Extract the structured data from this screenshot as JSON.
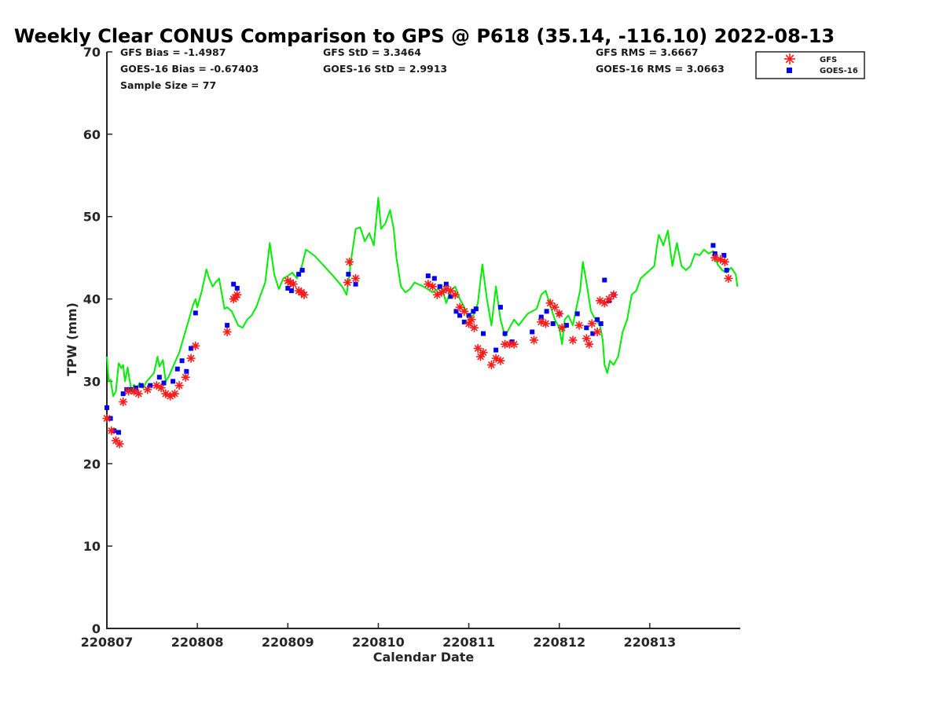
{
  "chart_data": {
    "type": "scatter",
    "title": "Weekly Clear CONUS Comparison to GPS @ P618 (35.14, -116.10) 2022-08-13",
    "xlabel": "Calendar Date",
    "ylabel": "TPW (mm)",
    "x_unit": "days",
    "xlim": [
      220807,
      220814
    ],
    "ylim": [
      0,
      70
    ],
    "yticks": [
      0,
      10,
      20,
      30,
      40,
      50,
      60,
      70
    ],
    "xticks": [
      220807,
      220808,
      220809,
      220810,
      220811,
      220812,
      220813
    ],
    "xtick_labels": [
      "220807",
      "220808",
      "220809",
      "220810",
      "220811",
      "220812",
      "220813"
    ],
    "stats": {
      "gfs_bias": "GFS Bias = -1.4987",
      "goes_bias": "GOES-16 Bias = -0.67403",
      "sample_size": "Sample Size = 77",
      "gfs_std": "GFS StD = 3.3464",
      "goes_std": "GOES-16 StD = 2.9913",
      "gfs_rms": "GFS RMS = 3.6667",
      "goes_rms": "GOES-16 RMS = 3.0663"
    },
    "legend": {
      "placement": "top-right outside",
      "entries": [
        "GFS",
        "GOES-16"
      ]
    },
    "colors": {
      "gfs": "#ff1a1a",
      "goes": "#0000ee",
      "gps": "#00ee00",
      "axis": "#262626"
    },
    "gps_line": {
      "x": [
        220807.0,
        220807.02,
        220807.04,
        220807.07,
        220807.1,
        220807.13,
        220807.16,
        220807.18,
        220807.2,
        220807.23,
        220807.25,
        220807.28,
        220807.3,
        220807.33,
        220807.36,
        220807.4,
        220807.44,
        220807.48,
        220807.52,
        220807.56,
        220807.58,
        220807.62,
        220807.65,
        220807.68,
        220807.72,
        220807.76,
        220807.8,
        220807.84,
        220807.88,
        220807.92,
        220807.95,
        220807.98,
        220808.0,
        220808.05,
        220808.1,
        220808.13,
        220808.17,
        220808.2,
        220808.24,
        220808.28,
        220808.3,
        220808.33,
        220808.38,
        220808.45,
        220808.5,
        220808.55,
        220808.6,
        220808.65,
        220808.7,
        220808.75,
        220808.8,
        220808.85,
        220808.9,
        220808.95,
        220809.0,
        220809.05,
        220809.1,
        220809.15,
        220809.2,
        220809.3,
        220809.4,
        220809.5,
        220809.6,
        220809.65,
        220809.7,
        220809.75,
        220809.8,
        220809.85,
        220809.9,
        220809.95,
        220810.0,
        220810.03,
        220810.08,
        220810.13,
        220810.17,
        220810.2,
        220810.25,
        220810.3,
        220810.35,
        220810.4,
        220810.5,
        220810.6,
        220810.7,
        220810.75,
        220810.8,
        220810.85,
        220810.9,
        220810.95,
        220811.0,
        220811.05,
        220811.1,
        220811.15,
        220811.2,
        220811.25,
        220811.3,
        220811.35,
        220811.4,
        220811.45,
        220811.5,
        220811.55,
        220811.6,
        220811.65,
        220811.7,
        220811.75,
        220811.8,
        220811.85,
        220811.9,
        220811.95,
        220812.0,
        220812.03,
        220812.06,
        220812.1,
        220812.15,
        220812.2,
        220812.23,
        220812.26,
        220812.3,
        220812.35,
        220812.4,
        220812.45,
        220812.48,
        220812.5,
        220812.53,
        220812.56,
        220812.6,
        220812.65,
        220812.7,
        220812.75,
        220812.8,
        220812.85,
        220812.9,
        220812.95,
        220813.0,
        220813.05,
        220813.08,
        220813.1,
        220813.15,
        220813.2,
        220813.25,
        220813.3,
        220813.35,
        220813.4,
        220813.45,
        220813.5,
        220813.55,
        220813.6,
        220813.65,
        220813.7,
        220813.75,
        220813.8,
        220813.85,
        220813.9,
        220813.95,
        220813.97
      ],
      "y": [
        33.0,
        30.0,
        30.2,
        28.2,
        28.8,
        32.2,
        31.6,
        32.0,
        30.0,
        31.7,
        30.2,
        28.5,
        29.6,
        29.0,
        29.8,
        29.2,
        30.0,
        30.5,
        31.0,
        33.0,
        31.8,
        32.6,
        30.0,
        30.5,
        31.5,
        32.5,
        33.5,
        35.0,
        36.5,
        38.0,
        39.2,
        40.0,
        39.0,
        41.0,
        43.6,
        42.5,
        41.5,
        42.0,
        42.5,
        40.0,
        38.8,
        39.0,
        38.5,
        36.8,
        36.5,
        37.5,
        38.0,
        39.0,
        40.5,
        42.0,
        46.8,
        43.0,
        41.2,
        42.5,
        42.8,
        43.2,
        42.5,
        43.8,
        46.0,
        45.2,
        44.0,
        42.8,
        41.5,
        40.5,
        44.8,
        48.5,
        48.7,
        47.0,
        48.0,
        46.5,
        52.3,
        48.5,
        49.2,
        50.8,
        48.5,
        45.0,
        41.5,
        40.8,
        41.2,
        42.0,
        41.5,
        40.8,
        41.5,
        39.5,
        41.0,
        41.5,
        40.0,
        39.0,
        37.5,
        38.0,
        39.5,
        44.2,
        40.0,
        36.8,
        41.5,
        37.5,
        35.5,
        36.5,
        37.5,
        36.8,
        37.5,
        38.2,
        38.5,
        38.8,
        40.5,
        41.0,
        39.2,
        37.5,
        36.5,
        34.5,
        37.5,
        38.0,
        36.8,
        39.5,
        41.0,
        44.5,
        42.0,
        38.5,
        37.5,
        36.8,
        35.0,
        32.0,
        31.0,
        32.5,
        32.0,
        33.0,
        36.0,
        37.5,
        40.5,
        41.0,
        42.5,
        43.0,
        43.5,
        44.0,
        46.5,
        47.8,
        46.5,
        48.3,
        44.0,
        46.8,
        44.0,
        43.5,
        44.0,
        45.5,
        45.3,
        46.0,
        45.5,
        45.8,
        44.2,
        43.5,
        43.2,
        43.8,
        43.0,
        41.5
      ]
    },
    "series": [
      {
        "name": "GFS",
        "marker": "asterisk",
        "x": [
          220807.0,
          220807.05,
          220807.1,
          220807.14,
          220807.18,
          220807.24,
          220807.3,
          220807.35,
          220807.45,
          220807.55,
          220807.6,
          220807.65,
          220807.7,
          220807.75,
          220807.8,
          220807.87,
          220807.93,
          220807.98,
          220808.33,
          220808.4,
          220808.42,
          220808.44,
          220809.0,
          220809.03,
          220809.06,
          220809.12,
          220809.15,
          220809.18,
          220809.66,
          220809.68,
          220809.75,
          220810.55,
          220810.6,
          220810.65,
          220810.7,
          220810.75,
          220810.8,
          220810.85,
          220810.9,
          220810.95,
          220811.0,
          220811.03,
          220811.06,
          220811.1,
          220811.13,
          220811.16,
          220811.25,
          220811.3,
          220811.35,
          220811.4,
          220811.45,
          220811.5,
          220811.72,
          220811.8,
          220811.85,
          220811.9,
          220811.95,
          220812.0,
          220812.03,
          220812.15,
          220812.22,
          220812.3,
          220812.33,
          220812.36,
          220812.42,
          220812.45,
          220812.5,
          220812.55,
          220812.6,
          220813.72,
          220813.78,
          220813.83,
          220813.87
        ],
        "y": [
          25.5,
          24.0,
          22.8,
          22.4,
          27.5,
          28.8,
          28.8,
          28.5,
          29.0,
          29.5,
          29.2,
          28.5,
          28.2,
          28.5,
          29.5,
          30.5,
          32.8,
          34.3,
          36.0,
          40.0,
          40.2,
          40.5,
          42.2,
          42.0,
          41.8,
          41.0,
          40.8,
          40.5,
          42.0,
          44.5,
          42.5,
          41.8,
          41.5,
          40.5,
          40.8,
          41.2,
          41.0,
          40.5,
          39.0,
          38.5,
          37.0,
          37.5,
          36.5,
          34.0,
          33.0,
          33.5,
          32.0,
          32.8,
          32.5,
          34.5,
          34.5,
          34.5,
          35.0,
          37.2,
          37.0,
          39.5,
          39.0,
          38.2,
          36.5,
          35.0,
          36.8,
          35.2,
          34.5,
          37.0,
          36.0,
          39.8,
          39.5,
          40.0,
          40.5,
          45.0,
          44.8,
          44.5,
          42.5
        ]
      },
      {
        "name": "GOES-16",
        "marker": "square",
        "x": [
          220807.0,
          220807.04,
          220807.08,
          220807.13,
          220807.18,
          220807.22,
          220807.26,
          220807.32,
          220807.38,
          220807.48,
          220807.58,
          220807.63,
          220807.73,
          220807.78,
          220807.83,
          220807.88,
          220807.93,
          220807.98,
          220808.33,
          220808.4,
          220808.44,
          220809.0,
          220809.04,
          220809.12,
          220809.16,
          220809.67,
          220809.75,
          220810.55,
          220810.62,
          220810.68,
          220810.75,
          220810.8,
          220810.86,
          220810.9,
          220810.95,
          220811.0,
          220811.05,
          220811.08,
          220811.16,
          220811.3,
          220811.35,
          220811.4,
          220811.48,
          220811.7,
          220811.8,
          220811.86,
          220811.93,
          220812.0,
          220812.08,
          220812.2,
          220812.3,
          220812.37,
          220812.42,
          220812.46,
          220812.5,
          220812.55,
          220812.6,
          220813.7,
          220813.72,
          220813.82,
          220813.85
        ],
        "y": [
          26.8,
          25.5,
          24.0,
          23.8,
          28.5,
          29.0,
          29.0,
          29.2,
          29.5,
          29.5,
          30.5,
          29.8,
          30.0,
          31.5,
          32.5,
          31.2,
          34.0,
          38.3,
          36.8,
          41.8,
          41.3,
          41.3,
          41.0,
          43.0,
          43.5,
          43.0,
          41.8,
          42.8,
          42.5,
          41.5,
          41.8,
          40.3,
          38.5,
          38.0,
          37.2,
          38.0,
          38.5,
          38.8,
          35.8,
          33.8,
          39.0,
          35.8,
          34.8,
          36.0,
          37.8,
          38.5,
          37.0,
          38.2,
          36.8,
          38.2,
          36.5,
          35.8,
          37.5,
          37.0,
          42.3,
          39.8,
          40.5,
          46.5,
          45.5,
          45.3,
          43.5
        ]
      }
    ]
  }
}
